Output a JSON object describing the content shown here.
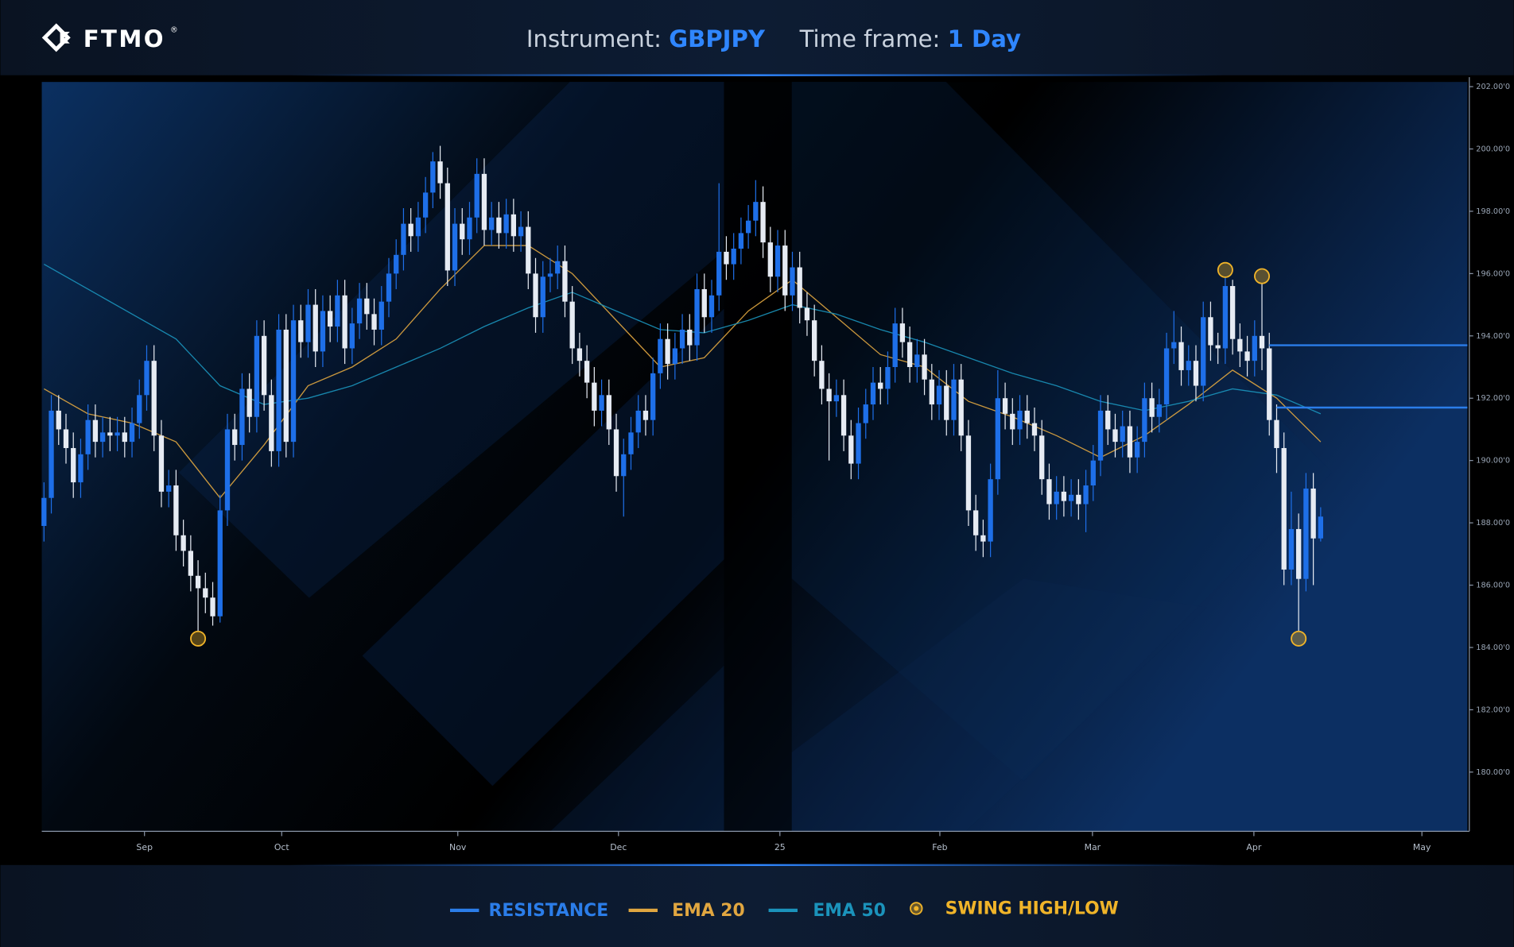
{
  "brand": "FTMO",
  "brand_mark": "®",
  "chart_data": {
    "type": "candlestick",
    "instrument_label": "Instrument:",
    "instrument": "GBPJPY",
    "timeframe_label": "Time frame:",
    "timeframe": "1 Day",
    "xlim": [
      -0.3,
      194
    ],
    "ylim": [
      178.1,
      202.15
    ],
    "xticks": [
      {
        "value": 13.7,
        "label": "Sep"
      },
      {
        "value": 32.4,
        "label": "Oct"
      },
      {
        "value": 56.4,
        "label": "Nov"
      },
      {
        "value": 78.3,
        "label": "Dec"
      },
      {
        "value": 100.3,
        "label": "25"
      },
      {
        "value": 122.1,
        "label": "Feb"
      },
      {
        "value": 142.9,
        "label": "Mar"
      },
      {
        "value": 164.9,
        "label": "Apr"
      },
      {
        "value": 187.8,
        "label": "May"
      }
    ],
    "yticks": [
      {
        "value": 180,
        "label": "180.00'0"
      },
      {
        "value": 182,
        "label": "182.00'0"
      },
      {
        "value": 184,
        "label": "184.00'0"
      },
      {
        "value": 186,
        "label": "186.00'0"
      },
      {
        "value": 188,
        "label": "188.00'0"
      },
      {
        "value": 190,
        "label": "190.00'0"
      },
      {
        "value": 192,
        "label": "192.00'0"
      },
      {
        "value": 194,
        "label": "194.00'0"
      },
      {
        "value": 196,
        "label": "196.00'0"
      },
      {
        "value": 198,
        "label": "198.00'0"
      },
      {
        "value": 200,
        "label": "200.00'0"
      },
      {
        "value": 202,
        "label": "202.00'0"
      }
    ],
    "candles": {
      "up_color": "#1e6fe8",
      "down_color": "#e6ebf3",
      "open": [
        187.9,
        188.8,
        191.6,
        191.0,
        190.4,
        189.3,
        190.2,
        191.3,
        190.6,
        190.9,
        190.8,
        190.9,
        190.6,
        191.2,
        192.1,
        193.2,
        190.8,
        189.0,
        189.2,
        187.6,
        187.1,
        186.3,
        185.9,
        185.6,
        185.0,
        188.4,
        191.0,
        190.5,
        192.3,
        191.4,
        194.0,
        192.1,
        190.3,
        194.2,
        190.6,
        194.5,
        193.8,
        195.0,
        193.5,
        194.8,
        194.3,
        195.3,
        193.6,
        194.4,
        195.2,
        194.7,
        194.2,
        195.1,
        196.0,
        196.6,
        197.6,
        197.2,
        197.8,
        198.6,
        199.6,
        198.9,
        196.1,
        197.6,
        197.1,
        197.8,
        199.2,
        197.4,
        197.8,
        197.3,
        197.9,
        197.2,
        197.5,
        196.0,
        194.6,
        195.9,
        196.0,
        196.4,
        195.1,
        193.6,
        193.2,
        192.5,
        191.6,
        192.1,
        191.0,
        189.5,
        190.2,
        190.9,
        191.6,
        191.3,
        192.8,
        193.9,
        193.1,
        193.6,
        194.2,
        193.7,
        195.5,
        194.6,
        195.3,
        196.7,
        196.3,
        196.8,
        197.3,
        197.7,
        198.3,
        197.0,
        195.9,
        196.9,
        195.3,
        196.2,
        194.9,
        194.5,
        193.2,
        192.3,
        191.9,
        192.1,
        190.8,
        189.9,
        191.2,
        191.8,
        192.5,
        192.3,
        193.0,
        194.4,
        193.8,
        193.0,
        193.4,
        192.6,
        191.8,
        192.4,
        191.3,
        192.6,
        190.8,
        188.4,
        187.6,
        187.4,
        189.4,
        192.0,
        191.5,
        191.0,
        191.6,
        191.2,
        190.8,
        189.4,
        188.6,
        189.0,
        188.7,
        188.9,
        188.6,
        189.2,
        190.0,
        191.6,
        191.0,
        190.6,
        191.1,
        190.1,
        190.6,
        192.0,
        191.4,
        191.8,
        193.6,
        193.8,
        192.9,
        193.2,
        192.4,
        194.6,
        193.7,
        193.6,
        195.6,
        193.9,
        193.5,
        193.2,
        194.0,
        193.6,
        191.3,
        190.4,
        186.5,
        187.8,
        186.2,
        189.1,
        187.5
      ],
      "high": [
        189.3,
        192.1,
        192.1,
        191.5,
        190.9,
        190.7,
        191.8,
        191.8,
        191.4,
        191.4,
        191.4,
        191.4,
        191.7,
        192.6,
        193.7,
        193.7,
        191.3,
        189.7,
        189.7,
        188.1,
        187.6,
        186.8,
        186.4,
        186.1,
        188.9,
        191.5,
        191.5,
        192.8,
        192.8,
        194.5,
        194.5,
        192.6,
        194.7,
        194.7,
        195.0,
        195.0,
        195.5,
        195.5,
        195.3,
        195.3,
        195.8,
        195.8,
        194.9,
        195.7,
        195.7,
        195.2,
        195.6,
        196.5,
        197.1,
        198.1,
        198.1,
        198.3,
        199.1,
        199.9,
        200.1,
        199.4,
        198.1,
        198.1,
        198.3,
        199.7,
        199.7,
        198.3,
        198.3,
        198.4,
        198.4,
        198.0,
        198.0,
        196.5,
        196.4,
        196.5,
        196.9,
        196.9,
        195.6,
        194.1,
        193.7,
        193.0,
        192.6,
        192.6,
        191.5,
        190.7,
        191.4,
        192.1,
        192.1,
        193.3,
        194.4,
        194.4,
        194.1,
        194.7,
        194.7,
        196.0,
        196.0,
        195.8,
        198.9,
        197.2,
        197.3,
        197.8,
        198.2,
        199.0,
        198.8,
        197.5,
        197.4,
        197.4,
        196.7,
        196.7,
        195.4,
        195.0,
        193.7,
        192.8,
        192.6,
        192.6,
        191.3,
        191.7,
        192.3,
        193.0,
        193.0,
        193.5,
        194.9,
        194.9,
        194.3,
        193.9,
        193.9,
        193.1,
        192.9,
        192.9,
        193.1,
        193.1,
        191.3,
        188.9,
        188.1,
        189.9,
        192.9,
        192.5,
        192.0,
        192.1,
        192.1,
        191.7,
        191.3,
        189.9,
        189.5,
        189.5,
        189.4,
        189.4,
        189.7,
        190.5,
        192.1,
        192.1,
        191.5,
        191.6,
        191.6,
        191.1,
        192.5,
        192.5,
        192.3,
        194.1,
        194.8,
        194.3,
        193.7,
        193.7,
        195.1,
        195.1,
        194.1,
        195.9,
        195.8,
        194.4,
        194.0,
        194.5,
        195.7,
        194.1,
        191.8,
        190.9,
        189.0,
        188.3,
        189.6,
        189.6,
        188.5
      ],
      "low": [
        187.4,
        188.3,
        190.5,
        189.9,
        188.8,
        188.8,
        189.7,
        190.1,
        190.1,
        190.3,
        190.3,
        190.1,
        190.1,
        190.7,
        191.6,
        190.3,
        188.5,
        188.5,
        187.1,
        186.6,
        185.8,
        184.5,
        185.1,
        184.7,
        184.8,
        187.9,
        190.0,
        190.0,
        190.9,
        190.9,
        191.6,
        189.8,
        189.8,
        190.1,
        190.1,
        193.3,
        193.3,
        193.0,
        193.0,
        193.8,
        193.8,
        193.1,
        193.1,
        193.9,
        194.2,
        193.7,
        193.7,
        194.6,
        195.5,
        196.1,
        196.7,
        196.7,
        197.3,
        198.1,
        198.4,
        195.6,
        195.6,
        196.6,
        196.6,
        197.3,
        196.9,
        196.9,
        196.8,
        196.8,
        196.7,
        196.7,
        195.5,
        194.1,
        194.1,
        195.4,
        195.5,
        194.6,
        193.1,
        192.7,
        192.0,
        191.1,
        191.1,
        190.5,
        189.0,
        188.2,
        189.7,
        190.4,
        190.8,
        190.8,
        192.3,
        192.6,
        192.6,
        193.1,
        193.2,
        193.2,
        194.1,
        194.1,
        194.8,
        195.8,
        195.8,
        196.3,
        196.8,
        197.2,
        196.5,
        195.4,
        195.4,
        194.8,
        194.8,
        194.4,
        194.0,
        192.7,
        191.8,
        190.0,
        191.4,
        190.3,
        189.4,
        189.4,
        190.7,
        191.3,
        191.8,
        191.8,
        192.5,
        193.3,
        192.5,
        192.5,
        192.1,
        191.3,
        191.3,
        190.8,
        190.8,
        190.3,
        187.9,
        187.1,
        186.9,
        186.9,
        188.9,
        191.0,
        190.5,
        190.5,
        190.7,
        190.3,
        188.9,
        188.1,
        188.1,
        188.2,
        188.2,
        188.1,
        187.7,
        188.7,
        189.5,
        190.5,
        190.1,
        190.1,
        189.6,
        189.6,
        190.1,
        190.9,
        190.9,
        191.3,
        193.1,
        192.4,
        192.4,
        191.9,
        191.9,
        193.2,
        193.1,
        193.1,
        193.4,
        193.0,
        192.7,
        192.7,
        192.9,
        190.8,
        189.6,
        186.0,
        186.0,
        184.5,
        185.8,
        186.0,
        187.4
      ],
      "close": [
        188.8,
        191.6,
        191.0,
        190.4,
        189.3,
        190.2,
        191.3,
        190.6,
        190.9,
        190.8,
        190.9,
        190.6,
        191.2,
        192.1,
        193.2,
        190.8,
        189.0,
        189.2,
        187.6,
        187.1,
        186.3,
        185.9,
        185.6,
        185.0,
        188.4,
        191.0,
        190.5,
        192.3,
        191.4,
        194.0,
        192.1,
        190.3,
        194.2,
        190.6,
        194.5,
        193.8,
        195.0,
        193.5,
        194.8,
        194.3,
        195.3,
        193.6,
        194.4,
        195.2,
        194.7,
        194.2,
        195.1,
        196.0,
        196.6,
        197.6,
        197.2,
        197.8,
        198.6,
        199.6,
        198.9,
        196.1,
        197.6,
        197.1,
        197.8,
        199.2,
        197.4,
        197.8,
        197.3,
        197.9,
        197.2,
        197.5,
        196.0,
        194.6,
        195.9,
        196.0,
        196.4,
        195.1,
        193.6,
        193.2,
        192.5,
        191.6,
        192.1,
        191.0,
        189.5,
        190.2,
        190.9,
        191.6,
        191.3,
        192.8,
        193.9,
        193.1,
        193.6,
        194.2,
        193.7,
        195.5,
        194.6,
        195.3,
        196.7,
        196.3,
        196.8,
        197.3,
        197.7,
        198.3,
        197.0,
        195.9,
        196.9,
        195.3,
        196.2,
        194.9,
        194.5,
        193.2,
        192.3,
        191.9,
        192.1,
        190.8,
        189.9,
        191.2,
        191.8,
        192.5,
        192.3,
        193.0,
        194.4,
        193.8,
        193.0,
        193.4,
        192.6,
        191.8,
        192.4,
        191.3,
        192.6,
        190.8,
        188.4,
        187.6,
        187.4,
        189.4,
        192.0,
        191.5,
        191.0,
        191.6,
        191.2,
        190.8,
        189.4,
        188.6,
        189.0,
        188.7,
        188.9,
        188.6,
        189.2,
        190.0,
        191.6,
        191.0,
        190.6,
        191.1,
        190.1,
        190.6,
        192.0,
        191.4,
        191.8,
        193.6,
        193.8,
        192.9,
        193.2,
        192.4,
        194.6,
        193.7,
        193.6,
        195.6,
        193.9,
        193.5,
        193.2,
        194.0,
        193.6,
        191.3,
        190.4,
        186.5,
        187.8,
        186.2,
        189.1,
        187.5,
        188.2
      ]
    },
    "resistance": {
      "name": "RESISTANCE",
      "color": "#2b7de9",
      "levels": [
        {
          "value": 193.7,
          "from": 167
        },
        {
          "value": 191.7,
          "from": 168
        }
      ]
    },
    "series": [
      {
        "name": "EMA 20",
        "color": "#e0a640",
        "x": [
          0,
          6,
          12,
          18,
          24,
          30,
          36,
          42,
          48,
          54,
          60,
          66,
          72,
          78,
          84,
          90,
          96,
          102,
          108,
          114,
          120,
          126,
          132,
          138,
          144,
          150,
          156,
          162,
          168,
          174
        ],
        "values": [
          192.3,
          191.5,
          191.2,
          190.6,
          188.8,
          190.5,
          192.4,
          193.0,
          193.9,
          195.5,
          196.9,
          196.9,
          196.0,
          194.5,
          193.0,
          193.3,
          194.8,
          195.8,
          194.6,
          193.4,
          193.0,
          191.9,
          191.4,
          190.8,
          190.1,
          190.8,
          191.8,
          192.9,
          192.0,
          190.6
        ]
      },
      {
        "name": "EMA 50",
        "color": "#1b93bb",
        "x": [
          0,
          6,
          12,
          18,
          24,
          30,
          36,
          42,
          48,
          54,
          60,
          66,
          72,
          78,
          84,
          90,
          96,
          102,
          108,
          114,
          120,
          126,
          132,
          138,
          144,
          150,
          156,
          162,
          168,
          174
        ],
        "values": [
          196.3,
          195.5,
          194.7,
          193.9,
          192.4,
          191.8,
          192.0,
          192.4,
          193.0,
          193.6,
          194.3,
          194.9,
          195.4,
          194.8,
          194.2,
          194.1,
          194.5,
          195.0,
          194.7,
          194.2,
          193.8,
          193.3,
          192.8,
          192.4,
          191.9,
          191.6,
          191.9,
          192.3,
          192.1,
          191.5
        ]
      }
    ],
    "swings": {
      "name": "SWING HIGH/LOW",
      "color": "#f0b429",
      "highs": [
        161,
        166
      ],
      "lows": [
        21,
        171
      ]
    }
  }
}
